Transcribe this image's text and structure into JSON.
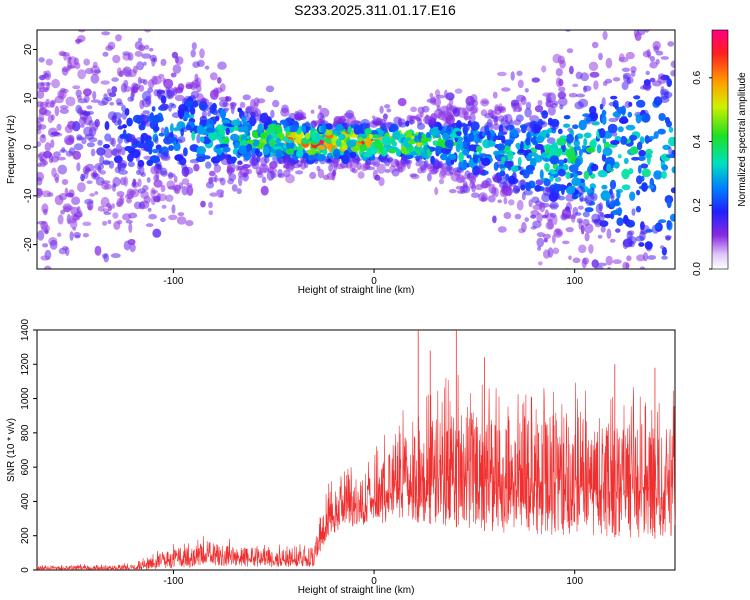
{
  "title": "S233.2025.311.01.17.E16",
  "chart_data": [
    {
      "type": "heatmap",
      "xlabel": "Height of straight line (km)",
      "ylabel": "Frequency (Hz)",
      "xlim": [
        -168,
        150
      ],
      "ylim": [
        -25,
        24
      ],
      "x_ticks": [
        -100,
        0,
        100
      ],
      "y_ticks": [
        -20,
        -10,
        0,
        10,
        20
      ],
      "colorbar": {
        "label": "Normalized spectral amplitude",
        "range": [
          0,
          0.75
        ],
        "ticks": [
          0.0,
          0.2,
          0.4,
          0.6
        ]
      },
      "ridge": {
        "x": [
          -160,
          -120,
          -90,
          -60,
          -30,
          0,
          30,
          60,
          100,
          150
        ],
        "freq_center": [
          0,
          3,
          3,
          2,
          1,
          1,
          1,
          -1,
          -2,
          -4
        ],
        "peak_amplitude": [
          0.05,
          0.15,
          0.3,
          0.4,
          0.7,
          0.65,
          0.4,
          0.3,
          0.35,
          0.3
        ]
      }
    },
    {
      "type": "line",
      "xlabel": "Height of straight line (km)",
      "ylabel": "SNR (10 * v/v)",
      "xlim": [
        -168,
        150
      ],
      "ylim": [
        0,
        1400
      ],
      "x_ticks": [
        -100,
        0,
        100
      ],
      "y_ticks": [
        0,
        200,
        400,
        600,
        800,
        1000,
        1200,
        1400
      ],
      "series": [
        {
          "color": "#f03030",
          "envelope_x": [
            -168,
            -120,
            -100,
            -85,
            -70,
            -50,
            -30,
            -22,
            -15,
            0,
            10,
            20,
            40,
            60,
            100,
            150
          ],
          "envelope_low": [
            0,
            0,
            10,
            20,
            20,
            15,
            20,
            200,
            250,
            250,
            300,
            280,
            250,
            220,
            200,
            180
          ],
          "envelope_high": [
            30,
            40,
            160,
            210,
            180,
            160,
            170,
            540,
            600,
            700,
            900,
            1000,
            1200,
            1100,
            1100,
            1050
          ],
          "peaks": [
            [
              22,
              1400
            ],
            [
              41,
              1400
            ],
            [
              28,
              1280
            ],
            [
              55,
              1240
            ],
            [
              120,
              1200
            ],
            [
              140,
              1180
            ]
          ]
        }
      ]
    }
  ]
}
